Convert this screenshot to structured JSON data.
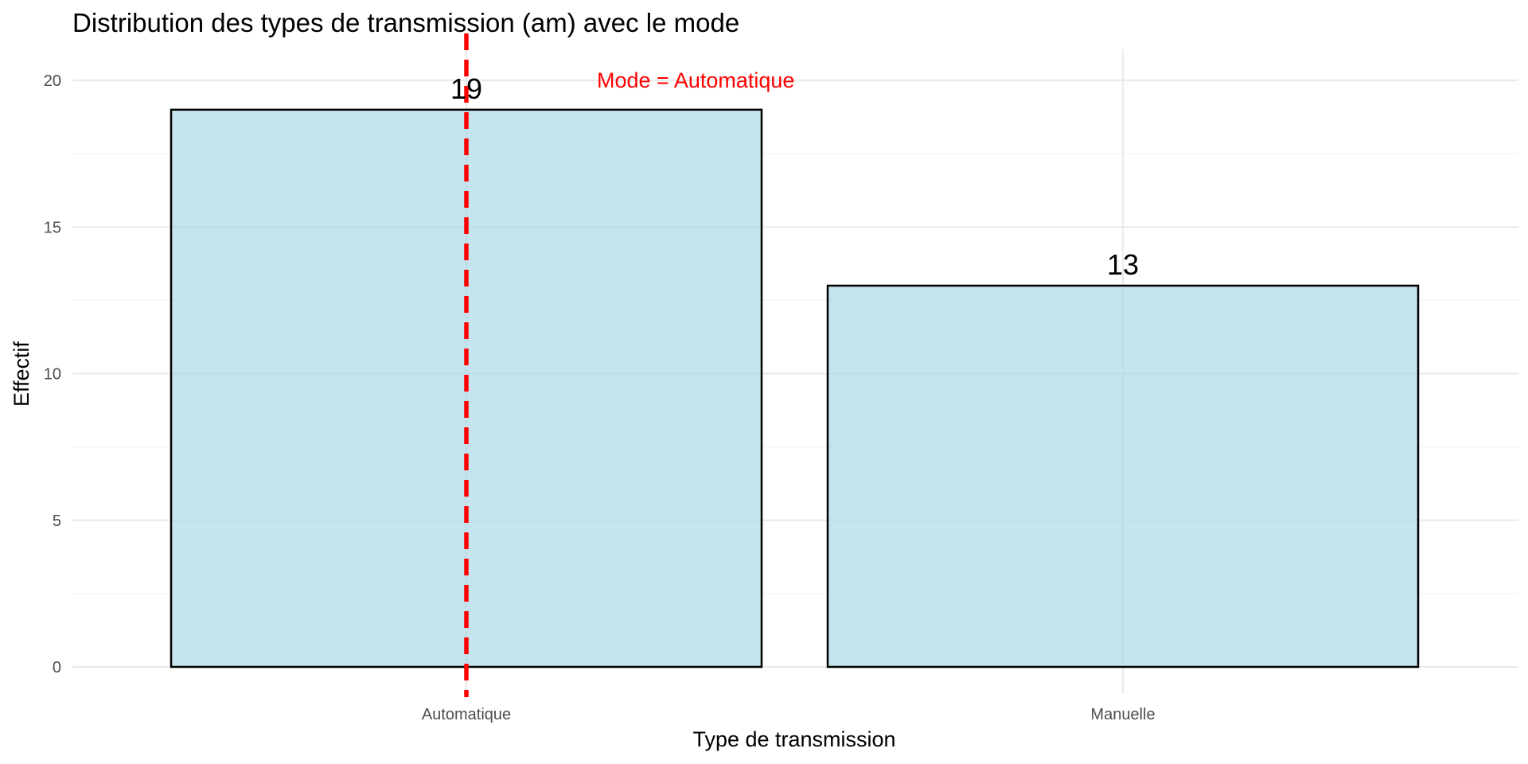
{
  "chart_data": {
    "type": "bar",
    "title": "Distribution des types de transmission (am) avec le mode",
    "xlabel": "Type de transmission",
    "ylabel": "Effectif",
    "categories": [
      "Automatique",
      "Manuelle"
    ],
    "values": [
      19,
      13
    ],
    "data_labels": [
      "19",
      "13"
    ],
    "ylim": [
      0,
      20.5
    ],
    "yticks": [
      0,
      5,
      10,
      15,
      20
    ],
    "ytick_labels": [
      "0",
      "5",
      "10",
      "15",
      "20"
    ],
    "grid": true,
    "legend": "none",
    "bar_fill": "#add8e6",
    "bar_outline": "#000000",
    "annotation": {
      "text": "Mode = Automatique",
      "category": "Automatique",
      "line_style": "dashed",
      "color": "#ff0000"
    }
  }
}
